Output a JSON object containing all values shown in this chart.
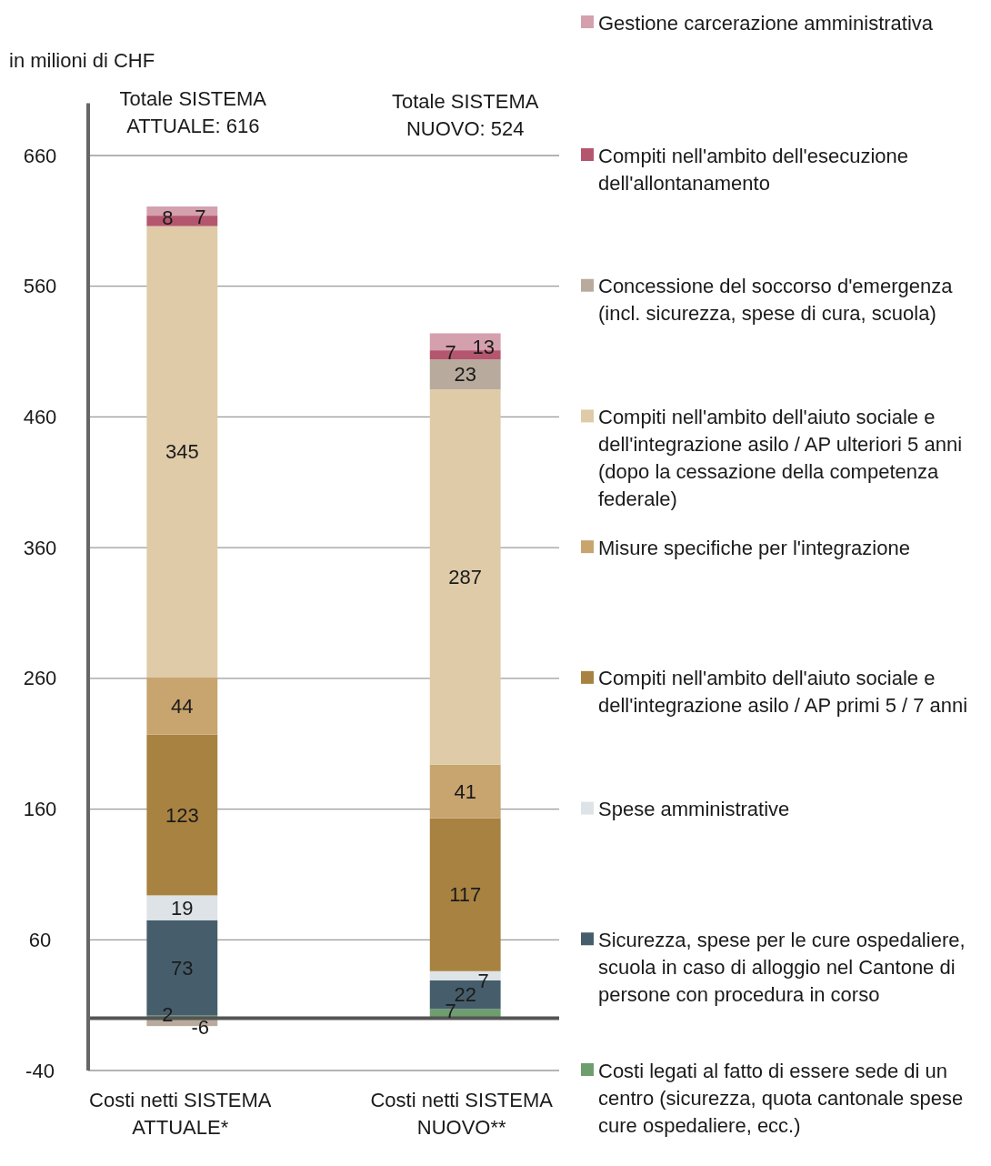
{
  "chart_data": {
    "type": "bar",
    "stacked": true,
    "ylabel": "in milioni di CHF",
    "categories": [
      "Costi netti SISTEMA ATTUALE*",
      "Costi netti SISTEMA NUOVO**"
    ],
    "annotations": [
      "Totale SISTEMA ATTUALE: 616",
      "Totale SISTEMA NUOVO: 524"
    ],
    "ylim": [
      -40,
      700
    ],
    "yticks": [
      -40,
      60,
      160,
      260,
      360,
      460,
      560,
      660
    ],
    "grid": "y",
    "legend": "right",
    "data_labels": true,
    "series": [
      {
        "name": "Costi legati al fatto di essere sede di un centro (sicurezza, quota cantonale spese cure ospedaliere, ecc.)",
        "color": "#6f9e6e",
        "values": [
          2,
          7
        ]
      },
      {
        "name": "Sicurezza, spese per le cure ospedaliere, scuola in caso di alloggio nel Cantone di persone con procedura in corso",
        "color": "#465e6b",
        "values": [
          73,
          22
        ]
      },
      {
        "name": "Spese amministrative",
        "color": "#dde3e6",
        "values": [
          19,
          7
        ]
      },
      {
        "name": "Compiti nell'ambito dell'aiuto sociale e dell'integrazione asilo / AP primi 5 / 7 anni",
        "color": "#a88240",
        "values": [
          123,
          117
        ]
      },
      {
        "name": "Misure specifiche per l'integrazione",
        "color": "#c8a46e",
        "values": [
          44,
          41
        ]
      },
      {
        "name": "Compiti nell'ambito dell'aiuto sociale e dell'integrazione asilo / AP ulteriori 5 anni (dopo la cessazione della competenza federale)",
        "color": "#dfcba8",
        "values": [
          345,
          287
        ]
      },
      {
        "name": "Concessione del soccorso d'emergenza (incl. sicurezza, spese di cura, scuola)",
        "color": "#b8aa9c",
        "values": [
          -6,
          23
        ]
      },
      {
        "name": "Compiti nell'ambito dell'esecuzione dell'allontanamento",
        "color": "#b5566f",
        "values": [
          8,
          7
        ]
      },
      {
        "name": "Gestione carcerazione amministrativa",
        "color": "#d4a0ae",
        "values": [
          7,
          13
        ]
      }
    ]
  }
}
